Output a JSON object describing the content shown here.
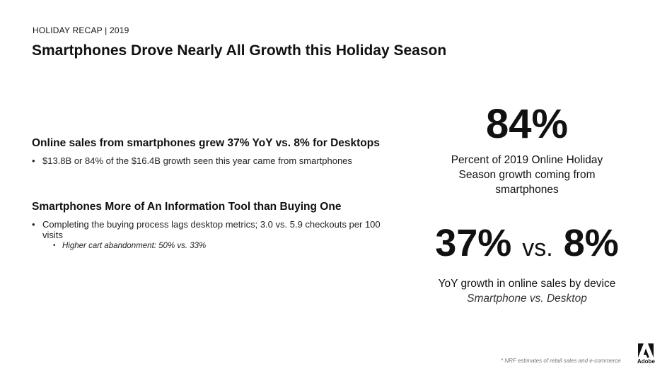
{
  "header": {
    "eyebrow": "HOLIDAY RECAP | 2019",
    "title": "Smartphones Drove Nearly All Growth this Holiday Season"
  },
  "section1": {
    "heading": "Online sales from smartphones grew 37% YoY vs. 8% for Desktops",
    "bullet": "$13.8B or 84% of the $16.4B growth seen this year came from smartphones"
  },
  "section2": {
    "heading": "Smartphones More of An Information Tool than Buying One",
    "bullet": "Completing the buying process lags desktop metrics; 3.0 vs. 5.9 checkouts per 100 visits",
    "sub_bullet": "Higher cart abandonment: 50% vs. 33%"
  },
  "stat1": {
    "value": "84%",
    "description": "Percent of 2019 Online Holiday Season growth coming from smartphones"
  },
  "stat2": {
    "value_a": "37%",
    "vs": "vs.",
    "value_b": "8%",
    "description": "YoY growth in online sales by device",
    "caption": "Smartphone vs. Desktop"
  },
  "footer": {
    "footnote": "* NRF estimates of retail sales and e-commerce",
    "logo_text": "Adobe"
  },
  "colors": {
    "text": "#111111",
    "background": "#ffffff"
  }
}
